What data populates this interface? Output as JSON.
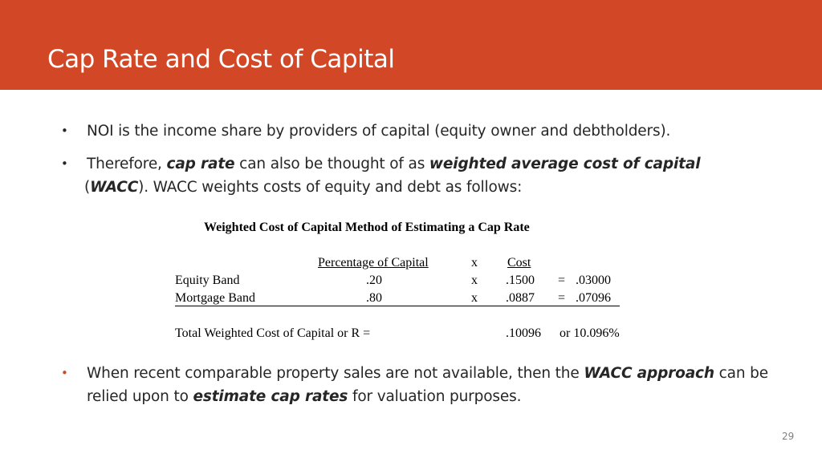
{
  "slide": {
    "title": "Cap Rate and Cost of Capital",
    "page_number": "29",
    "colors": {
      "header": "#D24726",
      "bullet_accent": "#D24726"
    }
  },
  "bullets": {
    "b1": "NOI is the income share by providers of capital (equity owner and debtholders).",
    "b2_a": "Therefore, ",
    "b2_b": "cap rate",
    "b2_c": " can also be thought of as ",
    "b2_d": "weighted average cost of capital",
    "b2_e": " (",
    "b2_f": "WACC",
    "b2_g": "). WACC weights costs of equity and debt as follows:",
    "b3_a": "When recent comparable property sales are not available, then the ",
    "b3_b": "WACC approach",
    "b3_c": " can be relied upon to ",
    "b3_d": "estimate cap rates",
    "b3_e": " for valuation purposes.",
    "marker": "•"
  },
  "table": {
    "title": "Weighted Cost of Capital Method of Estimating a Cap Rate",
    "headers": {
      "pct": "Percentage of Capital",
      "x": "x",
      "cost": "Cost"
    },
    "rows": [
      {
        "label": "Equity Band",
        "pct": ".20",
        "x": "x",
        "cost": ".1500",
        "eq": "=",
        "result": ".03000"
      },
      {
        "label": "Mortgage Band",
        "pct": ".80",
        "x": "x",
        "cost": ".0887",
        "eq": "=",
        "result": ".07096"
      }
    ],
    "total_label": "Total Weighted Cost of Capital or R =",
    "total_value": ".10096",
    "total_alt": "or 10.096%"
  }
}
